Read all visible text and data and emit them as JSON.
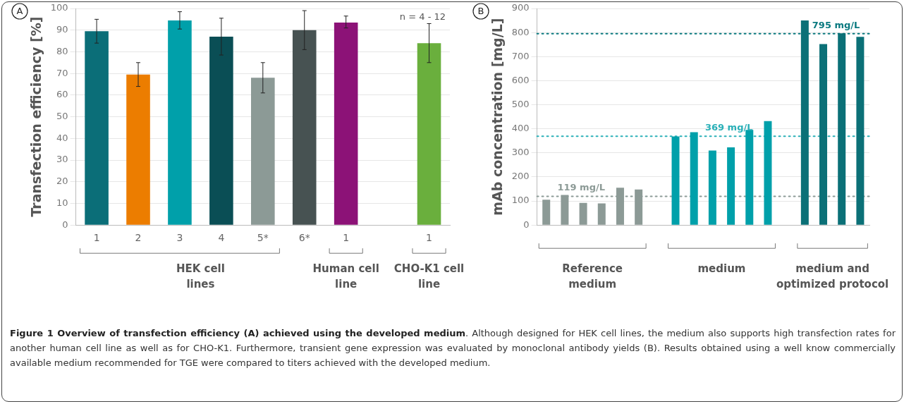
{
  "chart_data": [
    {
      "type": "bar",
      "ylabel": "Transfection efficiency [%]",
      "categories": [
        "1",
        "2",
        "3",
        "4",
        "5*",
        "6*",
        "1",
        null,
        "1"
      ],
      "values": [
        89.5,
        69.5,
        94.5,
        87,
        68,
        90,
        93.5,
        null,
        84
      ],
      "colors": [
        "#0b6e78",
        "#ec7d00",
        "#00a0aa",
        "#0a4e55",
        "#8c9a96",
        "#475252",
        "#8c1277",
        "#ffffff",
        "#6aaf3d"
      ],
      "errors": [
        [
          84,
          95
        ],
        [
          64,
          75
        ],
        [
          90.5,
          98.5
        ],
        [
          78.5,
          95.5
        ],
        [
          61,
          75
        ],
        [
          81,
          99
        ],
        [
          91,
          96.5
        ],
        null,
        [
          75,
          93
        ]
      ],
      "ylim": [
        0,
        100
      ],
      "yticks": [
        0,
        10,
        20,
        30,
        40,
        50,
        60,
        70,
        80,
        90,
        100
      ],
      "grid": "y",
      "annotations": [
        "A",
        "n = 4 - 12",
        "HEK cell lines",
        "Human cell line",
        "CHO-K1 cell line",
        "Figure 1 Overview of transfection efficiency (A) achieved using the developed medium",
        ". Although designed for HEK cell lines, the medium also supports high transfection rates for another human cell line as well as for CHO-K1. Furthermore, transient gene expression was evaluated by monoclonal antibody yields (B). Results obtained using a well know commercially available medium recommended for TGE were compared to titers achieved with the developed medium."
      ]
    },
    {
      "type": "bar",
      "ylabel": "mAb concentration [mg/L]",
      "categories": [
        null,
        null,
        null,
        null,
        null,
        null,
        null,
        null,
        null,
        null,
        null,
        null,
        null,
        null,
        null,
        null,
        null,
        null
      ],
      "values": [
        105,
        125,
        92,
        90,
        155,
        148,
        null,
        368,
        386,
        310,
        323,
        395,
        432,
        null,
        850,
        752,
        797,
        782
      ],
      "colors": [
        "#8c9a96",
        "#8c9a96",
        "#8c9a96",
        "#8c9a96",
        "#8c9a96",
        "#8c9a96",
        "#ffffff",
        "#00a0aa",
        "#00a0aa",
        "#00a0aa",
        "#00a0aa",
        "#00a0aa",
        "#00a0aa",
        "#ffffff",
        "#0b7077",
        "#0b7077",
        "#0b7077",
        "#0b7077"
      ],
      "ylim": [
        0,
        900
      ],
      "yticks": [
        0,
        100,
        200,
        300,
        400,
        500,
        600,
        700,
        800,
        900
      ],
      "grid": "y",
      "ref_lines": [
        {
          "axis": "y",
          "value": 119,
          "label": "119 mg/L",
          "color": "#8c9a96",
          "line_style": "dotted"
        },
        {
          "axis": "y",
          "value": 369,
          "label": "369 mg/L",
          "color": "#2ab0b8",
          "line_style": "dotted"
        },
        {
          "axis": "y",
          "value": 795,
          "label": "795 mg/L",
          "color": "#0b7a80",
          "line_style": "dotted"
        }
      ],
      "annotations": [
        "B",
        "Reference medium",
        "medium",
        "medium and optimized protocol"
      ]
    }
  ]
}
